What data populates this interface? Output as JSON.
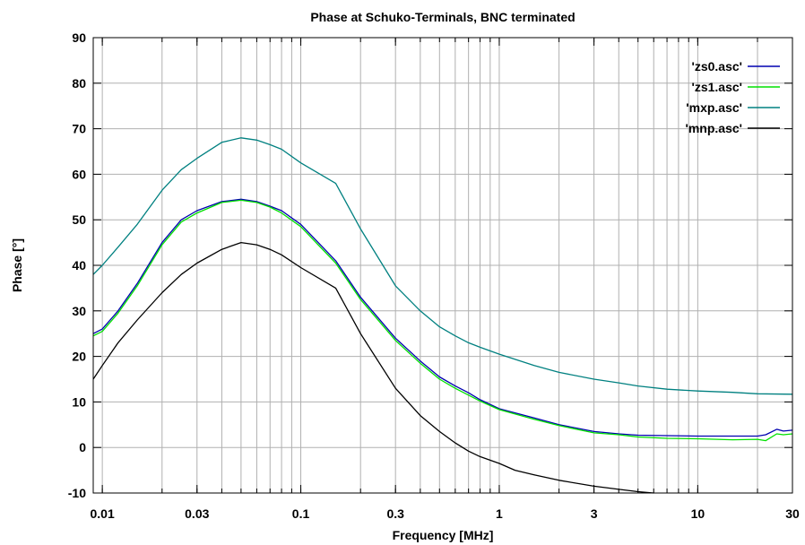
{
  "chart_data": {
    "type": "line",
    "title": "Phase at Schuko-Terminals, BNC terminated",
    "xlabel": "Frequency [MHz]",
    "ylabel": "Phase [°]",
    "xscale": "log",
    "xlim": [
      0.009,
      30
    ],
    "ylim": [
      -10,
      90
    ],
    "grid": true,
    "legend_position": "top-right",
    "x_ticks": [
      {
        "value": 0.01,
        "label": "0.01"
      },
      {
        "value": 0.03,
        "label": "0.03"
      },
      {
        "value": 0.1,
        "label": "0.1"
      },
      {
        "value": 0.3,
        "label": "0.3"
      },
      {
        "value": 1,
        "label": "1"
      },
      {
        "value": 3,
        "label": "3"
      },
      {
        "value": 10,
        "label": "10"
      },
      {
        "value": 30,
        "label": "30"
      }
    ],
    "y_ticks": [
      {
        "value": -10,
        "label": "-10"
      },
      {
        "value": 0,
        "label": "0"
      },
      {
        "value": 10,
        "label": "10"
      },
      {
        "value": 20,
        "label": "20"
      },
      {
        "value": 30,
        "label": "30"
      },
      {
        "value": 40,
        "label": "40"
      },
      {
        "value": 50,
        "label": "50"
      },
      {
        "value": 60,
        "label": "60"
      },
      {
        "value": 70,
        "label": "70"
      },
      {
        "value": 80,
        "label": "80"
      },
      {
        "value": 90,
        "label": "90"
      }
    ],
    "series": [
      {
        "name": "'zs0.asc'",
        "color": "#0000b0",
        "x": [
          0.009,
          0.01,
          0.012,
          0.015,
          0.02,
          0.025,
          0.03,
          0.04,
          0.05,
          0.06,
          0.07,
          0.08,
          0.1,
          0.15,
          0.2,
          0.3,
          0.4,
          0.5,
          0.6,
          0.7,
          0.8,
          1,
          1.5,
          2,
          3,
          4,
          5,
          7,
          10,
          15,
          20,
          22,
          25,
          27,
          30
        ],
        "y": [
          25,
          26,
          30,
          36,
          45,
          50,
          52,
          54,
          54.5,
          54,
          53,
          52,
          49,
          41,
          33,
          24,
          19,
          15.5,
          13.5,
          12,
          10.5,
          8.5,
          6.5,
          5,
          3.5,
          3,
          2.7,
          2.6,
          2.5,
          2.5,
          2.5,
          2.8,
          4,
          3.6,
          3.8
        ]
      },
      {
        "name": "'zs1.asc'",
        "color": "#00e000",
        "x": [
          0.009,
          0.01,
          0.012,
          0.015,
          0.02,
          0.025,
          0.03,
          0.04,
          0.05,
          0.06,
          0.07,
          0.08,
          0.1,
          0.15,
          0.2,
          0.3,
          0.4,
          0.5,
          0.6,
          0.7,
          0.8,
          1,
          1.5,
          2,
          3,
          4,
          5,
          7,
          10,
          15,
          20,
          22,
          25,
          27,
          30
        ],
        "y": [
          24.5,
          25.5,
          29.5,
          35.5,
          44.5,
          49.5,
          51.5,
          53.8,
          54.3,
          53.8,
          52.8,
          51.5,
          48.5,
          40.5,
          32.5,
          23.5,
          18.5,
          15,
          13,
          11.5,
          10.2,
          8.3,
          6.2,
          4.8,
          3.2,
          2.8,
          2.3,
          2,
          1.9,
          1.7,
          1.8,
          1.5,
          3,
          2.8,
          3
        ]
      },
      {
        "name": "'mxp.asc'",
        "color": "#008080",
        "x": [
          0.009,
          0.01,
          0.012,
          0.015,
          0.02,
          0.025,
          0.03,
          0.04,
          0.05,
          0.06,
          0.07,
          0.08,
          0.1,
          0.15,
          0.2,
          0.3,
          0.4,
          0.5,
          0.6,
          0.7,
          0.8,
          1,
          1.5,
          2,
          3,
          4,
          5,
          7,
          10,
          15,
          20,
          30
        ],
        "y": [
          38,
          40,
          44,
          49,
          56.5,
          61,
          63.5,
          67,
          68,
          67.5,
          66.5,
          65.5,
          62.5,
          58,
          48,
          35.5,
          30,
          26.5,
          24.5,
          23,
          22,
          20.5,
          18,
          16.5,
          15,
          14.2,
          13.5,
          12.8,
          12.4,
          12.1,
          11.8,
          11.7
        ]
      },
      {
        "name": "'mnp.asc'",
        "color": "#000000",
        "x": [
          0.009,
          0.01,
          0.012,
          0.015,
          0.02,
          0.025,
          0.03,
          0.04,
          0.05,
          0.06,
          0.07,
          0.08,
          0.1,
          0.15,
          0.2,
          0.3,
          0.4,
          0.5,
          0.6,
          0.7,
          0.8,
          1,
          1.2,
          1.5,
          2,
          3,
          4,
          5,
          6
        ],
        "y": [
          15,
          18,
          23,
          28,
          34,
          38,
          40.5,
          43.5,
          45,
          44.5,
          43.5,
          42.3,
          39.5,
          35,
          25,
          13,
          7,
          3.5,
          1,
          -0.8,
          -2,
          -3.5,
          -5,
          -6,
          -7.2,
          -8.5,
          -9.2,
          -9.7,
          -10
        ]
      }
    ]
  }
}
